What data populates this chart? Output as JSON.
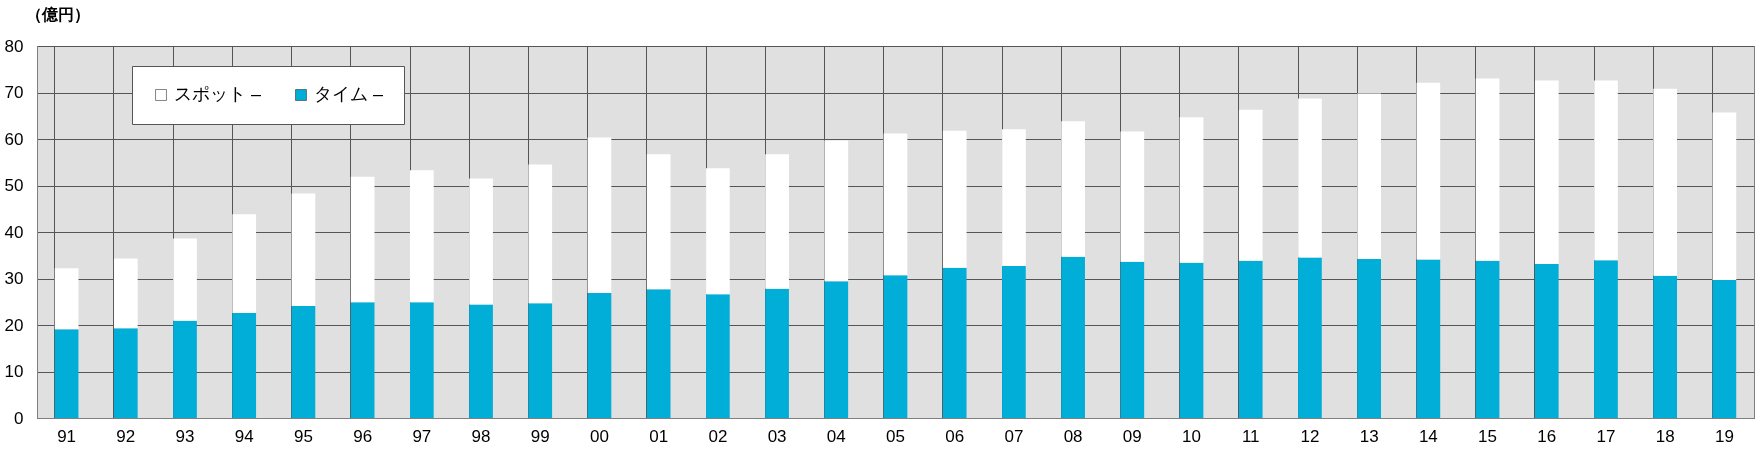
{
  "chart_data": {
    "type": "bar",
    "stacked": true,
    "ylabel": "（億円）",
    "categories": [
      "91",
      "92",
      "93",
      "94",
      "95",
      "96",
      "97",
      "98",
      "99",
      "00",
      "01",
      "02",
      "03",
      "04",
      "05",
      "06",
      "07",
      "08",
      "09",
      "10",
      "11",
      "12",
      "13",
      "14",
      "15",
      "16",
      "17",
      "18",
      "19"
    ],
    "series": [
      {
        "name": "タイム –",
        "color": "#00aed8",
        "values": [
          19.1,
          19.3,
          20.9,
          22.6,
          24.1,
          24.9,
          24.9,
          24.4,
          24.7,
          26.9,
          27.7,
          26.6,
          27.8,
          29.4,
          30.7,
          32.3,
          32.7,
          34.7,
          33.6,
          33.4,
          33.8,
          34.5,
          34.2,
          34.1,
          33.8,
          33.1,
          33.9,
          30.6,
          29.7
        ]
      },
      {
        "name": "スポット –",
        "color": "#ffffff",
        "values": [
          13.1,
          15.0,
          17.7,
          21.2,
          24.2,
          27.0,
          28.4,
          27.1,
          29.8,
          33.4,
          29.0,
          27.1,
          28.9,
          30.3,
          30.5,
          29.5,
          29.4,
          29.1,
          28.0,
          31.3,
          32.5,
          34.2,
          35.6,
          38.0,
          39.2,
          39.5,
          38.7,
          40.2,
          36.0
        ]
      }
    ],
    "ylim": [
      0,
      80
    ],
    "yticks": [
      0,
      10,
      20,
      30,
      40,
      50,
      60,
      70,
      80
    ],
    "grid": true,
    "legend": "top left"
  }
}
